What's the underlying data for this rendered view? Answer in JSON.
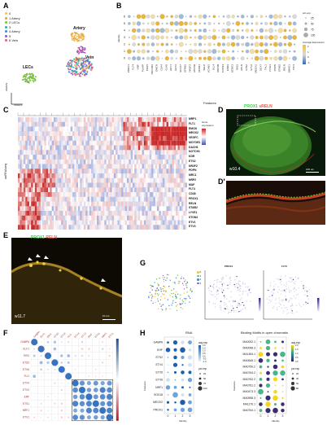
{
  "panels": {
    "A": {
      "label": "A",
      "legend": [
        {
          "id": "0",
          "name": "",
          "color": "#f2c14e"
        },
        {
          "id": "1",
          "name": "Artery",
          "color": "#e8a13a"
        },
        {
          "id": "2",
          "name": "LECs",
          "color": "#7bc043"
        },
        {
          "id": "3",
          "name": "",
          "color": "#2bb3a6"
        },
        {
          "id": "4",
          "name": "Artery",
          "color": "#3d8bd9"
        },
        {
          "id": "5",
          "name": "",
          "color": "#8e5cc9"
        },
        {
          "id": "6",
          "name": "Vein",
          "color": "#e05a9a"
        }
      ],
      "cluster_labels": {
        "artery": "Artery",
        "vein": "Vein",
        "lecs": "LECs"
      },
      "axis_x": "UMAP1",
      "axis_y": "UMAP2"
    },
    "B": {
      "label": "B",
      "ylabel": "Identity",
      "xlabel": "Features",
      "identities": [
        "6",
        "5",
        "4",
        "3",
        "2",
        "1",
        "0"
      ],
      "features": [
        "PROX1",
        "FLT4",
        "VWF",
        "PLVAP",
        "CDH5",
        "PECAM1",
        "EMCN",
        "GJA4",
        "GJA5",
        "HEY1",
        "HEY2",
        "SOX17",
        "EFNB2",
        "NR2F2",
        "APLNR",
        "ACKR1",
        "SELP",
        "VCAM1",
        "DLL4",
        "UNC5B",
        "CXCR4",
        "ESM1",
        "KCNE3",
        "NID2",
        "APLN",
        "ETS2",
        "ETV2",
        "MEOX2",
        "SOX7",
        "TAL1",
        "LYVE1",
        "PDPN",
        "STAB2",
        "RELN",
        "SMAD1",
        "TFF3"
      ],
      "legend_pct_title": "pct.exp",
      "legend_pct": [
        "25",
        "50",
        "75",
        "100"
      ],
      "legend_avg_title": "Average Expression",
      "legend_avg_ticks": [
        "2",
        "1",
        "0",
        "-1"
      ]
    },
    "C": {
      "label": "C",
      "ylabel": "snRNAseq",
      "legend_title": "Gene expression",
      "genes": [
        "MRP1",
        "FLT1",
        "EMCN",
        "MEOX2",
        "VEGFC",
        "MOTOR1",
        "DACH1",
        "NOTCH1",
        "KDR",
        "ETS2",
        "NR2F2",
        "PDPN",
        "MRC1",
        "NRP2",
        "MAF",
        "FLT4",
        "CD36",
        "PROX1",
        "RELN",
        "STAB2",
        "LYVE1",
        "STON2",
        "ETV1",
        "ETV3"
      ]
    },
    "D": {
      "label": "D",
      "title_green": "PROX1",
      "title_red": "sRELN",
      "stage": "w10.4",
      "scale": "100 um",
      "sublabel": "D'"
    },
    "E": {
      "label": "E",
      "title_green": "PROX1",
      "title_red": "RELN",
      "stage": "w11.7",
      "scale": "10 um"
    },
    "F": {
      "label": "F",
      "rows": [
        "GABPA",
        "ELF1",
        "ERG",
        "ETS2",
        "ETV6",
        "FLI1",
        "ETV4",
        "ETV2",
        "ERF",
        "ETS1",
        "NRF1",
        "ETV1"
      ]
    },
    "G": {
      "label": "G",
      "legend": [
        "0",
        "1",
        "2",
        "3"
      ],
      "plot_titles": [
        "PROX1",
        "FLT4"
      ],
      "axis_x": "UMAP_1",
      "axis_y": "UMAP_2"
    },
    "H": {
      "label": "H",
      "left_title": "RNA",
      "right_title": "Binding Motifs in open chromatin",
      "left_genes": [
        "GABPA",
        "EHF",
        "ETS2",
        "ETV4",
        "ETV5",
        "ETV6",
        "NRF1",
        "SOX18",
        "MEOX2",
        "PROX1"
      ],
      "right_motifs": [
        "MA0002.1",
        "MA0098.3",
        "MA1484.1",
        "MA0645.1",
        "MA0750.2",
        "MA0764.2",
        "MA0762.2",
        "MA0761.2",
        "MA0473.3",
        "MA0598.3",
        "MA1176.1",
        "MA0764.1"
      ],
      "identity_ticks": [
        "0",
        "1",
        "2",
        "3"
      ],
      "xlabel": "Identity",
      "ylabel": "Features",
      "legend_avg": "avg.exp",
      "legend_pct": "pct.exp",
      "legend_avg_ticks": [
        "2.0",
        "1.5",
        "1.0",
        "0.5",
        "0.0",
        "-0.5",
        "-1.0"
      ],
      "legend_pct_ticks": [
        "25",
        "50",
        "75",
        "100"
      ],
      "right_legend_avg_ticks": [
        "2.0",
        "1.5",
        "1.0",
        "0.5",
        "0.0"
      ],
      "right_legend_pct_ticks": [
        "20",
        "40",
        "60",
        "80"
      ]
    }
  },
  "colors": {
    "green": "#2e9e3e",
    "red": "#d9332b",
    "blue": "#2b6fb5",
    "purple": "#5a3fa0",
    "yellow": "#f1c232"
  }
}
